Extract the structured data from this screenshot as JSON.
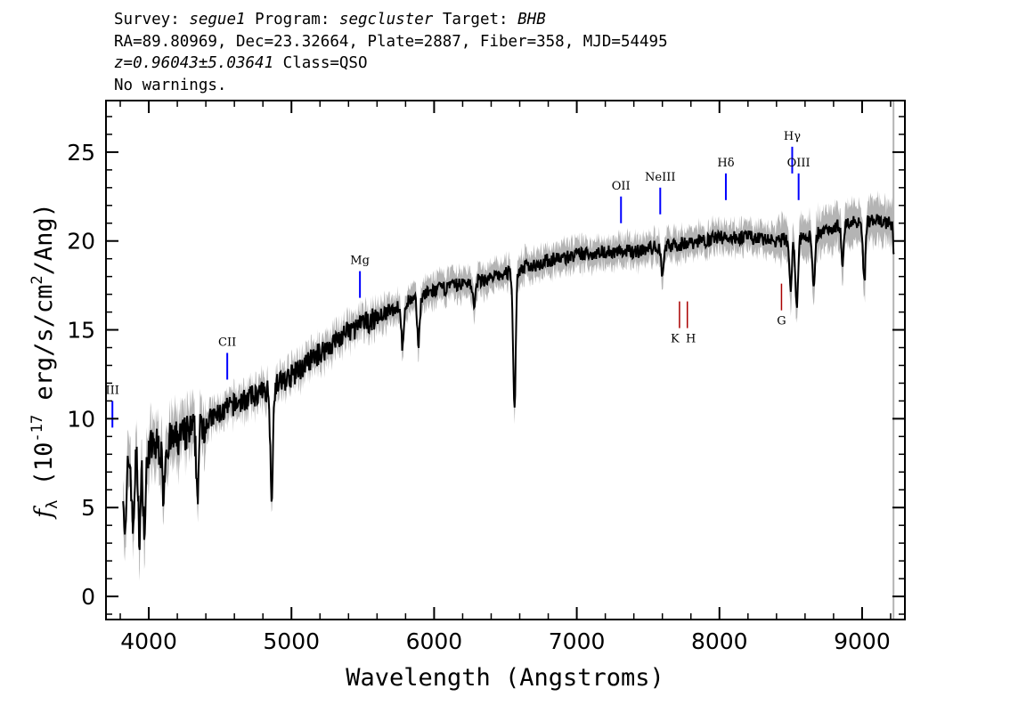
{
  "header": {
    "survey_label": "Survey:",
    "survey": "segue1",
    "program_label": "Program:",
    "program": "segcluster",
    "target_label": "Target:",
    "target": "BHB",
    "line2": "RA=89.80969, Dec=23.32664, Plate=2887, Fiber=358, MJD=54495",
    "redshift": "z=0.96043±5.03641",
    "class": "Class=QSO",
    "warnings": "No warnings."
  },
  "chart_data": {
    "type": "line",
    "xlabel": "Wavelength (Angstroms)",
    "ylabel_prefix": "f",
    "ylabel_sub": "λ",
    "ylabel_unit_a": "(10",
    "ylabel_exp": "-17",
    "ylabel_unit_b": " erg/s/cm",
    "ylabel_exp2": "2",
    "ylabel_unit_c": "/Ang)",
    "xlim": [
      3700,
      9300
    ],
    "ylim": [
      -1.3,
      27.9
    ],
    "xticks": [
      4000,
      5000,
      6000,
      7000,
      8000,
      9000
    ],
    "xtick_labels": [
      "4000",
      "5000",
      "6000",
      "7000",
      "8000",
      "9000"
    ],
    "yticks": [
      0,
      5,
      10,
      15,
      20,
      25
    ],
    "ytick_labels": [
      "0",
      "5",
      "10",
      "15",
      "20",
      "25"
    ],
    "continuum_x": [
      3820,
      3900,
      4000,
      4200,
      4400,
      4600,
      4800,
      5000,
      5200,
      5400,
      5600,
      5800,
      6000,
      6200,
      6400,
      6600,
      6800,
      7000,
      7200,
      7400,
      7600,
      7800,
      8000,
      8200,
      8400,
      8600,
      8800,
      9000,
      9220
    ],
    "continuum_y": [
      7.6,
      7.9,
      8.3,
      8.8,
      9.8,
      10.8,
      11.5,
      12.4,
      13.7,
      14.9,
      15.7,
      16.5,
      17.2,
      17.6,
      17.9,
      18.4,
      18.9,
      19.2,
      19.4,
      19.4,
      19.7,
      19.9,
      20.2,
      20.2,
      20.0,
      20.2,
      20.8,
      21.2,
      21.0
    ],
    "absorption_lines": [
      {
        "x": 3835,
        "depth": 4.5
      },
      {
        "x": 3889,
        "depth": 4.0
      },
      {
        "x": 3935,
        "depth": 4.5
      },
      {
        "x": 3970,
        "depth": 4.5
      },
      {
        "x": 4102,
        "depth": 2.5
      },
      {
        "x": 4341,
        "depth": 3.5
      },
      {
        "x": 4861,
        "depth": 6.0
      },
      {
        "x": 5780,
        "depth": 2.5
      },
      {
        "x": 5890,
        "depth": 2.5
      },
      {
        "x": 6280,
        "depth": 1.5
      },
      {
        "x": 6563,
        "depth": 7.8
      },
      {
        "x": 7600,
        "depth": 1.5
      },
      {
        "x": 8498,
        "depth": 2.8
      },
      {
        "x": 8542,
        "depth": 3.8
      },
      {
        "x": 8662,
        "depth": 3.2
      },
      {
        "x": 8863,
        "depth": 2.0
      },
      {
        "x": 9015,
        "depth": 3.5
      },
      {
        "x": 9230,
        "depth": 2.5
      }
    ],
    "emission_markers": [
      {
        "label": "CII",
        "x": 4550,
        "y": 12.2,
        "color": "#0000ff"
      },
      {
        "label": "Mg",
        "x": 5480,
        "y": 16.8,
        "color": "#0000ff"
      },
      {
        "label": "OII",
        "x": 7310,
        "y": 21.0,
        "color": "#0000ff"
      },
      {
        "label": "NeIII",
        "x": 7585,
        "y": 21.5,
        "color": "#0000ff"
      },
      {
        "label": "Hδ",
        "x": 8045,
        "y": 22.3,
        "color": "#0000ff"
      },
      {
        "label": "Hγ",
        "x": 8510,
        "y": 23.8,
        "color": "#0000ff"
      },
      {
        "label": "OIII",
        "x": 8555,
        "y": 22.3,
        "color": "#0000ff"
      },
      {
        "label": "III",
        "x": 3745,
        "y": 9.5,
        "color": "#0000ff"
      }
    ],
    "absorption_markers": [
      {
        "label": "K",
        "x": 7720,
        "color": "#aa0000"
      },
      {
        "label": "H",
        "x": 7775,
        "color": "#aa0000"
      },
      {
        "label": "G",
        "x": 8435,
        "color": "#aa0000"
      }
    ],
    "colors": {
      "flux": "#000000",
      "error_band": "#b4b4b4"
    }
  }
}
